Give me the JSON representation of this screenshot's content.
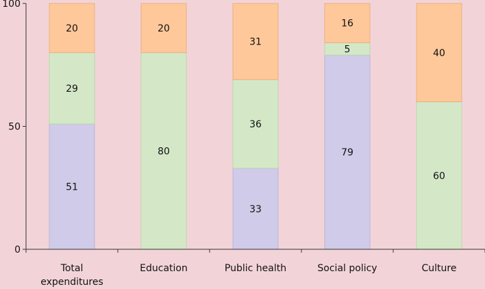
{
  "colors": {
    "background": "#f2d4d8",
    "axis": "#333333",
    "series": [
      "#cfcbe8",
      "#d4e8c8",
      "#fec89a"
    ],
    "series_stroke": [
      "#b9b5d6",
      "#bcd6ad",
      "#e9b07e"
    ]
  },
  "chart_data": {
    "type": "bar",
    "stacked": true,
    "categories": [
      "Total expenditures",
      "Education",
      "Public health",
      "Social policy",
      "Culture"
    ],
    "category_lines": [
      [
        "Total",
        "expenditures"
      ],
      [
        "Education"
      ],
      [
        "Public health"
      ],
      [
        "Social policy"
      ],
      [
        "Culture"
      ]
    ],
    "series": [
      {
        "values": [
          51,
          0,
          33,
          79,
          0
        ]
      },
      {
        "values": [
          29,
          80,
          36,
          5,
          60
        ]
      },
      {
        "values": [
          20,
          20,
          31,
          16,
          40
        ]
      }
    ],
    "ylim": [
      0,
      100
    ],
    "yticks": [
      0,
      50,
      100
    ],
    "grid": false,
    "legend": "none",
    "title": "",
    "xlabel": "",
    "ylabel": ""
  }
}
